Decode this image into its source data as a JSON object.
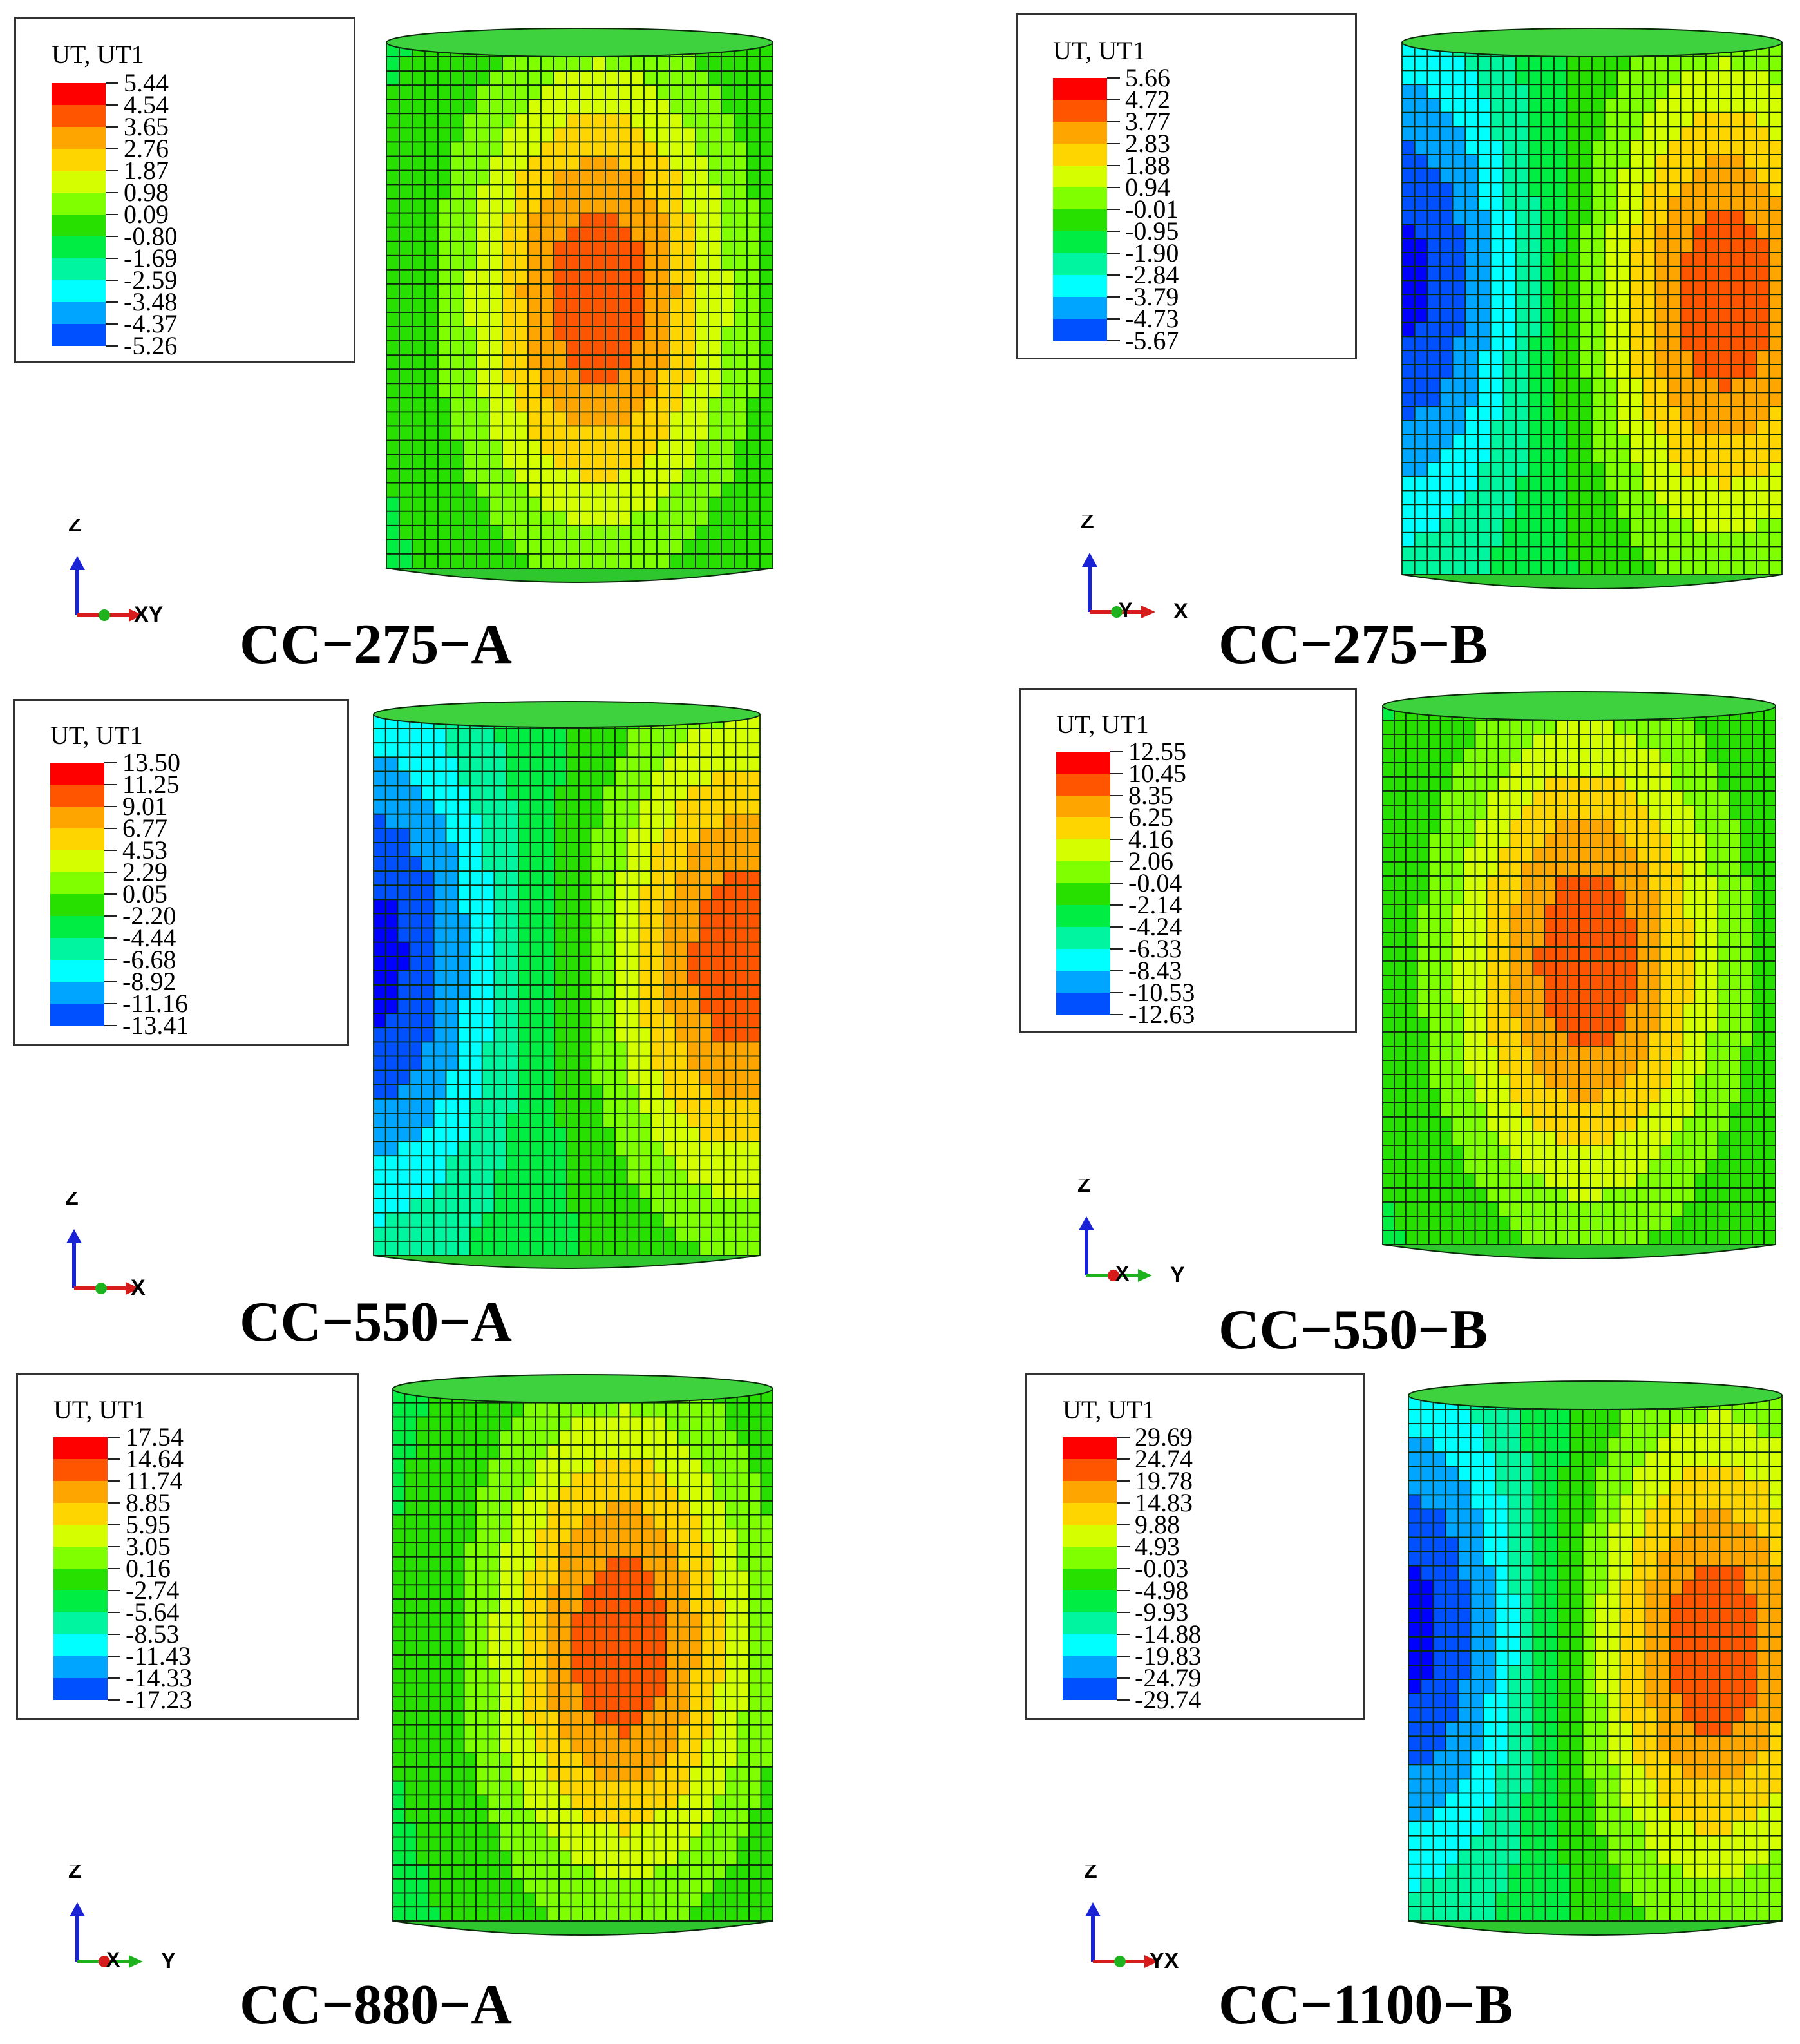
{
  "panels": [
    {
      "caption": "CC−275−A",
      "legend_title": "UT, UT1",
      "legend_values": [
        "5.44",
        "4.54",
        "3.65",
        "2.76",
        "1.87",
        "0.98",
        "0.09",
        "-0.80",
        "-1.69",
        "-2.59",
        "-3.48",
        "-4.37",
        "-5.26"
      ],
      "triad": {
        "up": "Z",
        "horizontal": "XY",
        "right_axis": "red",
        "other_axis": "green"
      },
      "hotspot": "center-right",
      "coldspot": "none"
    },
    {
      "caption": "CC−275−B",
      "legend_title": "UT, UT1",
      "legend_values": [
        "5.66",
        "4.72",
        "3.77",
        "2.83",
        "1.88",
        "0.94",
        "-0.01",
        "-0.95",
        "-1.90",
        "-2.84",
        "-3.79",
        "-4.73",
        "-5.67"
      ],
      "triad": {
        "up": "Z",
        "mid": "Y",
        "horizontal": "X",
        "right_axis": "red",
        "other_axis": "green"
      },
      "hotspot": "right-edge",
      "coldspot": "left-edge"
    },
    {
      "caption": "CC−550−A",
      "legend_title": "UT, UT1",
      "legend_values": [
        "13.50",
        "11.25",
        "9.01",
        "6.77",
        "4.53",
        "2.29",
        "0.05",
        "-2.20",
        "-4.44",
        "-6.68",
        "-8.92",
        "-11.16",
        "-13.41"
      ],
      "triad": {
        "up": "Z",
        "horizontal": "X",
        "right_axis": "red",
        "other_axis": "green"
      },
      "hotspot": "right-edge",
      "coldspot": "left-edge"
    },
    {
      "caption": "CC−550−B",
      "legend_title": "UT, UT1",
      "legend_values": [
        "12.55",
        "10.45",
        "8.35",
        "6.25",
        "4.16",
        "2.06",
        "-0.04",
        "-2.14",
        "-4.24",
        "-6.33",
        "-8.43",
        "-10.53",
        "-12.63"
      ],
      "triad": {
        "up": "Z",
        "mid": "X",
        "horizontal": "Y",
        "right_axis": "green",
        "other_axis": "red"
      },
      "hotspot": "center",
      "coldspot": "none"
    },
    {
      "caption": "CC−880−A",
      "legend_title": "UT, UT1",
      "legend_values": [
        "17.54",
        "14.64",
        "11.74",
        "8.85",
        "5.95",
        "3.05",
        "0.16",
        "-2.74",
        "-5.64",
        "-8.53",
        "-11.43",
        "-14.33",
        "-17.23"
      ],
      "triad": {
        "up": "Z",
        "mid": "X",
        "horizontal": "Y",
        "right_axis": "green",
        "other_axis": "red"
      },
      "hotspot": "center-right",
      "coldspot": "none"
    },
    {
      "caption": "CC−1100−B",
      "legend_title": "UT, UT1",
      "legend_values": [
        "29.69",
        "24.74",
        "19.78",
        "14.83",
        "9.88",
        "4.93",
        "-0.03",
        "-4.98",
        "-9.93",
        "-14.88",
        "-19.83",
        "-24.79",
        "-29.74"
      ],
      "triad": {
        "up": "Z",
        "horizontal": "YX",
        "right_axis": "red",
        "other_axis": "green"
      },
      "hotspot": "right-edge",
      "coldspot": "left-edge"
    }
  ],
  "colormap": [
    "#ff0000",
    "#ff5500",
    "#ffa500",
    "#ffd500",
    "#d5ff00",
    "#7fff00",
    "#28e000",
    "#00ee44",
    "#00f5a0",
    "#00ffff",
    "#00a5ff",
    "#0050ff",
    "#0000ff"
  ]
}
